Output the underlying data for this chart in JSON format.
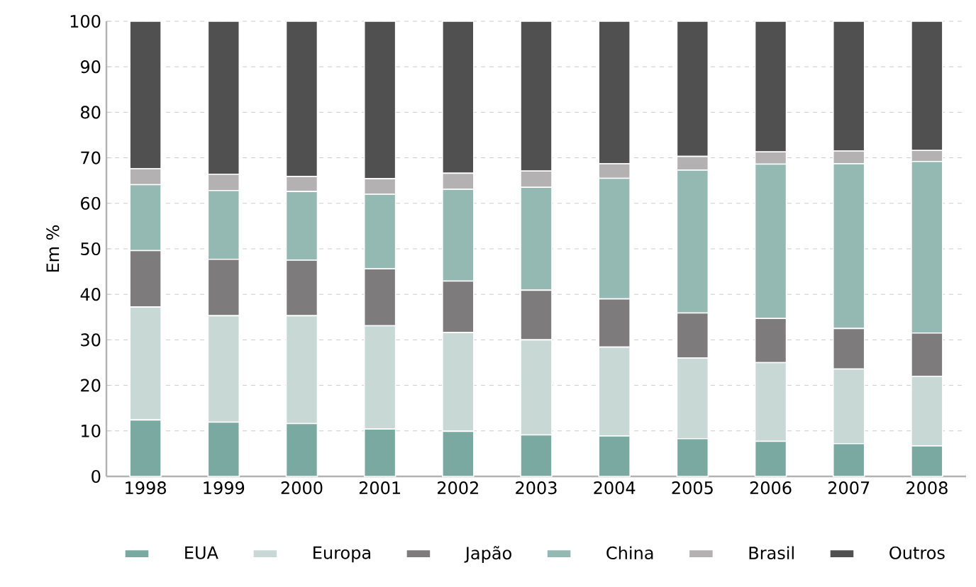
{
  "chart_data": {
    "type": "bar",
    "stacked": true,
    "ylabel": "Em %",
    "categories": [
      "1998",
      "1999",
      "2000",
      "2001",
      "2002",
      "2003",
      "2004",
      "2005",
      "2006",
      "2007",
      "2008"
    ],
    "series": [
      {
        "name": "EUA",
        "color": "#7aa9a1",
        "values": [
          12.4,
          11.9,
          11.6,
          10.4,
          9.9,
          9.1,
          8.9,
          8.3,
          7.7,
          7.2,
          6.7
        ]
      },
      {
        "name": "Europa",
        "color": "#c8d8d5",
        "values": [
          24.8,
          23.4,
          23.7,
          22.7,
          21.7,
          20.9,
          19.5,
          17.7,
          17.3,
          16.4,
          15.3
        ]
      },
      {
        "name": "Japão",
        "color": "#7d7b7c",
        "values": [
          12.4,
          12.4,
          12.2,
          12.5,
          11.3,
          10.9,
          10.6,
          9.9,
          9.7,
          8.9,
          9.5
        ]
      },
      {
        "name": "China",
        "color": "#94b8b2",
        "values": [
          14.5,
          15.1,
          15.1,
          16.4,
          20.2,
          22.6,
          26.5,
          31.4,
          33.9,
          36.2,
          37.7
        ]
      },
      {
        "name": "Brasil",
        "color": "#b3b1b2",
        "values": [
          3.5,
          3.6,
          3.3,
          3.4,
          3.5,
          3.6,
          3.2,
          3.0,
          2.7,
          2.8,
          2.4
        ]
      },
      {
        "name": "Outros",
        "color": "#515051",
        "values": [
          32.4,
          33.6,
          34.1,
          34.6,
          33.4,
          32.9,
          31.3,
          29.7,
          28.7,
          28.5,
          28.4
        ]
      }
    ],
    "ylim": [
      0,
      100
    ],
    "yticks": [
      0,
      10,
      20,
      30,
      40,
      50,
      60,
      70,
      80,
      90,
      100
    ],
    "grid": "y",
    "legend": "bottom"
  }
}
